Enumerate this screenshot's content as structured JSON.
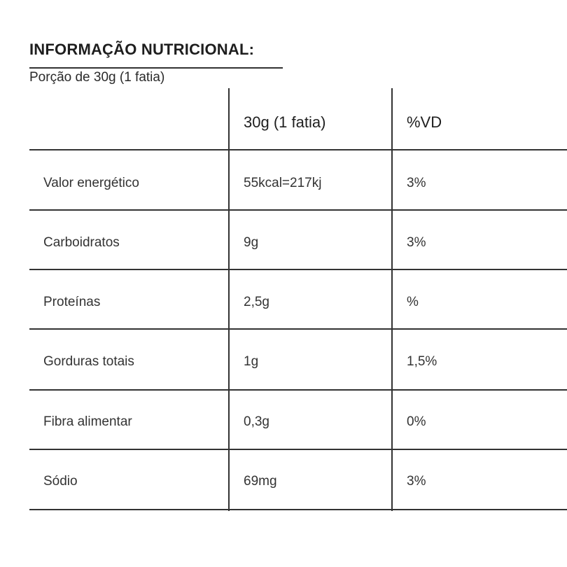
{
  "title": "INFORMAÇÃO NUTRICIONAL:",
  "subtitle": "Porção de 30g (1 fatia)",
  "table": {
    "headers": [
      "",
      "30g (1 fatia)",
      "%VD"
    ],
    "rows": [
      {
        "nutrient": "Valor energético",
        "amount": "55kcal=217kj",
        "dv": "3%"
      },
      {
        "nutrient": "Carboidratos",
        "amount": "9g",
        "dv": "3%"
      },
      {
        "nutrient": "Proteínas",
        "amount": "2,5g",
        "dv": "%"
      },
      {
        "nutrient": "Gorduras totais",
        "amount": "1g",
        "dv": "1,5%"
      },
      {
        "nutrient": "Fibra alimentar",
        "amount": "0,3g",
        "dv": "0%"
      },
      {
        "nutrient": "Sódio",
        "amount": "69mg",
        "dv": "3%"
      }
    ]
  }
}
